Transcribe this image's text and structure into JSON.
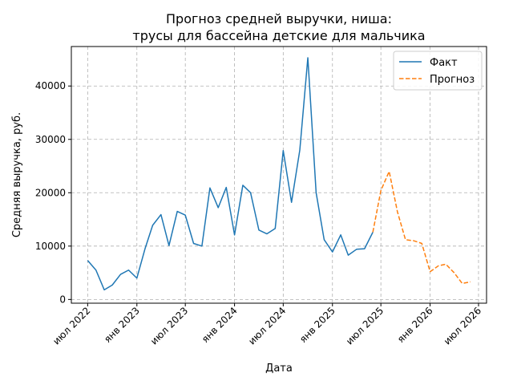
{
  "chart_data": {
    "type": "line",
    "title": [
      "Прогноз средней выручки, ниша:",
      "трусы для бассейна детские для мальчика"
    ],
    "xlabel": "Дата",
    "ylabel": "Средняя выручка, руб.",
    "x_range": [
      "2022-05-01",
      "2026-07-31"
    ],
    "ylim": [
      -700,
      47400
    ],
    "grid": true,
    "legend_position": "top-right",
    "x_ticks": [
      {
        "date": "2022-07-01",
        "label": "июл 2022"
      },
      {
        "date": "2023-01-01",
        "label": "янв 2023"
      },
      {
        "date": "2023-07-01",
        "label": "июл 2023"
      },
      {
        "date": "2024-01-01",
        "label": "янв 2024"
      },
      {
        "date": "2024-07-01",
        "label": "июл 2024"
      },
      {
        "date": "2025-01-01",
        "label": "янв 2025"
      },
      {
        "date": "2025-07-01",
        "label": "июл 2025"
      },
      {
        "date": "2026-01-01",
        "label": "янв 2026"
      },
      {
        "date": "2026-07-01",
        "label": "июл 2026"
      }
    ],
    "y_ticks": [
      {
        "value": 0,
        "label": "0"
      },
      {
        "value": 10000,
        "label": "10000"
      },
      {
        "value": 20000,
        "label": "20000"
      },
      {
        "value": 30000,
        "label": "30000"
      },
      {
        "value": 40000,
        "label": "40000"
      }
    ],
    "series": [
      {
        "name": "Факт",
        "color": "#1f77b4",
        "style": "solid",
        "points": [
          [
            "2022-07-01",
            7300
          ],
          [
            "2022-08-01",
            5500
          ],
          [
            "2022-09-01",
            1800
          ],
          [
            "2022-10-01",
            2700
          ],
          [
            "2022-11-01",
            4700
          ],
          [
            "2022-12-01",
            5500
          ],
          [
            "2023-01-01",
            4000
          ],
          [
            "2023-02-01",
            9600
          ],
          [
            "2023-03-01",
            13900
          ],
          [
            "2023-04-01",
            15900
          ],
          [
            "2023-05-01",
            10100
          ],
          [
            "2023-06-01",
            16500
          ],
          [
            "2023-07-01",
            15800
          ],
          [
            "2023-08-01",
            10500
          ],
          [
            "2023-09-01",
            10000
          ],
          [
            "2023-10-01",
            20900
          ],
          [
            "2023-11-01",
            17200
          ],
          [
            "2023-12-01",
            21000
          ],
          [
            "2024-01-01",
            12100
          ],
          [
            "2024-02-01",
            21400
          ],
          [
            "2024-03-01",
            20000
          ],
          [
            "2024-04-01",
            13000
          ],
          [
            "2024-05-01",
            12300
          ],
          [
            "2024-06-01",
            13300
          ],
          [
            "2024-07-01",
            27900
          ],
          [
            "2024-08-01",
            18200
          ],
          [
            "2024-09-01",
            28000
          ],
          [
            "2024-10-01",
            45300
          ],
          [
            "2024-11-01",
            20000
          ],
          [
            "2024-12-01",
            11200
          ],
          [
            "2025-01-01",
            8900
          ],
          [
            "2025-02-01",
            12100
          ],
          [
            "2025-03-01",
            8300
          ],
          [
            "2025-04-01",
            9400
          ],
          [
            "2025-05-01",
            9500
          ],
          [
            "2025-06-01",
            12600
          ]
        ]
      },
      {
        "name": "Прогноз",
        "color": "#ff7f0e",
        "style": "dashed",
        "points": [
          [
            "2025-06-01",
            12600
          ],
          [
            "2025-07-01",
            20400
          ],
          [
            "2025-08-01",
            24000
          ],
          [
            "2025-09-01",
            16400
          ],
          [
            "2025-10-01",
            11200
          ],
          [
            "2025-11-01",
            11000
          ],
          [
            "2025-12-01",
            10500
          ],
          [
            "2026-01-01",
            5200
          ],
          [
            "2026-02-01",
            6300
          ],
          [
            "2026-03-01",
            6600
          ],
          [
            "2026-04-01",
            5000
          ],
          [
            "2026-05-01",
            3000
          ],
          [
            "2026-06-01",
            3300
          ]
        ]
      }
    ]
  }
}
